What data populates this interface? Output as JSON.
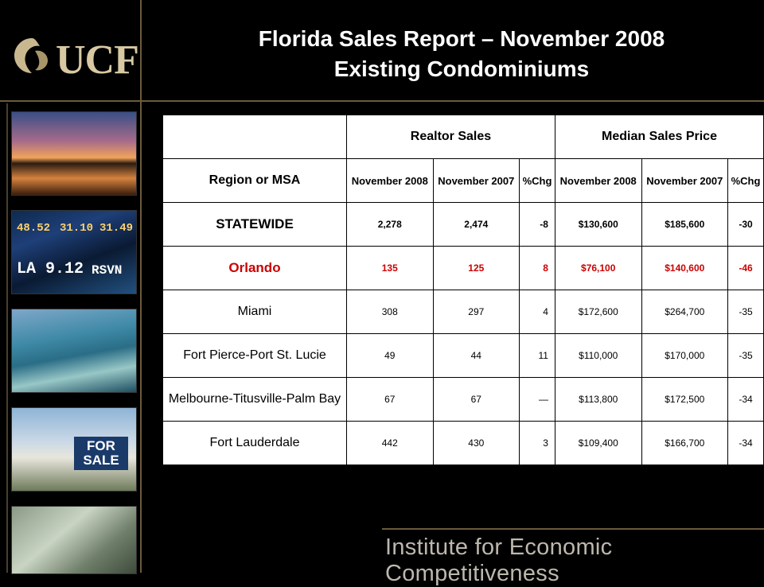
{
  "logo": {
    "text": "UCF"
  },
  "title": {
    "line1": "Florida Sales Report – November 2008",
    "line2": "Existing Condominiums"
  },
  "images": {
    "ticker": [
      "48.52",
      "31.10",
      "31.49",
      "LA 9.12",
      "RSVN"
    ],
    "for_sale": "FOR SALE"
  },
  "table": {
    "group_headers": [
      "Realtor Sales",
      "Median Sales Price"
    ],
    "region_header": "Region or MSA",
    "sub_headers": [
      "November 2008",
      "November 2007",
      "%Chg",
      "November 2008",
      "November 2007",
      "%Chg"
    ],
    "rows": [
      {
        "region": "STATEWIDE",
        "sales_2008": "2,278",
        "sales_2007": "2,474",
        "sales_chg": "-8",
        "price_2008": "$130,600",
        "price_2007": "$185,600",
        "price_chg": "-30"
      },
      {
        "region": "Orlando",
        "sales_2008": "135",
        "sales_2007": "125",
        "sales_chg": "8",
        "price_2008": "$76,100",
        "price_2007": "$140,600",
        "price_chg": "-46"
      },
      {
        "region": "Miami",
        "sales_2008": "308",
        "sales_2007": "297",
        "sales_chg": "4",
        "price_2008": "$172,600",
        "price_2007": "$264,700",
        "price_chg": "-35"
      },
      {
        "region": "Fort Pierce-Port St. Lucie",
        "sales_2008": "49",
        "sales_2007": "44",
        "sales_chg": "11",
        "price_2008": "$110,000",
        "price_2007": "$170,000",
        "price_chg": "-35"
      },
      {
        "region": "Melbourne-Titusville-Palm Bay",
        "sales_2008": "67",
        "sales_2007": "67",
        "sales_chg": "—",
        "price_2008": "$113,800",
        "price_2007": "$172,500",
        "price_chg": "-34"
      },
      {
        "region": "Fort Lauderdale",
        "sales_2008": "442",
        "sales_2007": "430",
        "sales_chg": "3",
        "price_2008": "$109,400",
        "price_2007": "$166,700",
        "price_chg": "-34"
      }
    ]
  },
  "footer": {
    "text": "Institute for Economic Competitiveness"
  },
  "colors": {
    "background": "#000000",
    "accent_gold": "#6b5b3d",
    "highlight_red": "#cc0000"
  }
}
